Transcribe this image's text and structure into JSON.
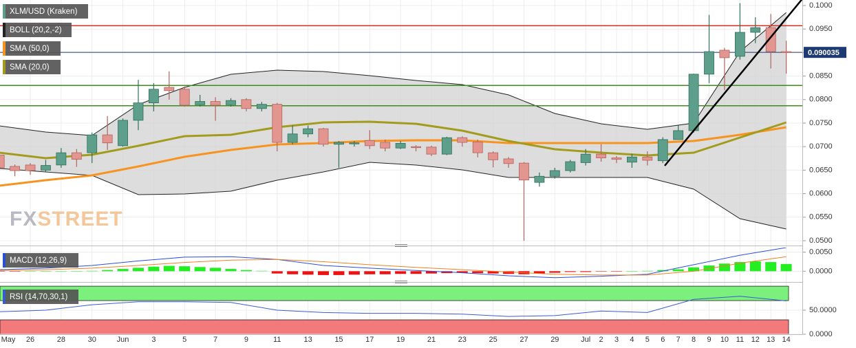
{
  "chart_data": [
    {
      "type": "candlestick",
      "title": "XLM/USD (Kraken)",
      "categories": [
        "May",
        null,
        "26",
        null,
        "28",
        null,
        "30",
        null,
        "Jun",
        null,
        "3",
        null,
        "5",
        null,
        "7",
        null,
        "9",
        null,
        "11",
        null,
        "13",
        null,
        "15",
        null,
        "17",
        null,
        "19",
        null,
        "21",
        null,
        "23",
        null,
        "25",
        null,
        "27",
        null,
        "29",
        null,
        "Jul",
        "2",
        "3",
        "4",
        "5",
        "6",
        "7",
        "8",
        "9",
        "10",
        "11",
        "12",
        "13",
        "14"
      ],
      "open": [
        0.0682,
        0.0658,
        0.0661,
        0.065,
        0.0661,
        0.0687,
        0.0687,
        0.0725,
        0.0702,
        0.0756,
        0.0793,
        0.0826,
        0.0822,
        0.0789,
        0.0796,
        0.0789,
        0.08,
        0.0781,
        0.079,
        0.0709,
        0.0727,
        0.0738,
        0.0705,
        0.0706,
        0.0713,
        0.0709,
        0.0697,
        0.07,
        0.0699,
        0.0684,
        0.0719,
        0.071,
        0.0687,
        0.0674,
        0.0665,
        0.0624,
        0.0637,
        0.0649,
        0.0666,
        0.0684,
        0.0676,
        0.0667,
        0.0678,
        0.067,
        0.0715,
        0.0734,
        0.0854,
        0.0905,
        0.0892,
        0.0943,
        0.0953,
        0.0902
      ],
      "high": [
        0.069,
        0.0662,
        0.0665,
        0.0672,
        0.0697,
        0.0695,
        0.073,
        0.0765,
        0.076,
        0.0842,
        0.0835,
        0.086,
        0.0828,
        0.081,
        0.0805,
        0.0803,
        0.0803,
        0.0795,
        0.0793,
        0.0745,
        0.0745,
        0.074,
        0.0712,
        0.0712,
        0.0735,
        0.0715,
        0.0712,
        0.0703,
        0.0702,
        0.0721,
        0.0722,
        0.0715,
        0.069,
        0.0678,
        0.0667,
        0.0645,
        0.0655,
        0.0672,
        0.0695,
        0.0705,
        0.068,
        0.0685,
        0.069,
        0.072,
        0.0745,
        0.0855,
        0.098,
        0.091,
        0.1005,
        0.0975,
        0.0982,
        0.0925
      ],
      "low": [
        0.065,
        0.0637,
        0.064,
        0.0645,
        0.0655,
        0.0657,
        0.0665,
        0.0693,
        0.07,
        0.0735,
        0.0775,
        0.08,
        0.0785,
        0.0785,
        0.0755,
        0.0785,
        0.0775,
        0.0775,
        0.069,
        0.0705,
        0.072,
        0.07,
        0.0655,
        0.07,
        0.0695,
        0.069,
        0.0695,
        0.069,
        0.068,
        0.0682,
        0.07,
        0.0677,
        0.0656,
        0.0655,
        0.05,
        0.0615,
        0.0632,
        0.0645,
        0.066,
        0.0668,
        0.0665,
        0.0655,
        0.066,
        0.0665,
        0.0715,
        0.073,
        0.0835,
        0.082,
        0.0885,
        0.092,
        0.0866,
        0.0855
      ],
      "close": [
        0.0655,
        0.0649,
        0.0649,
        0.066,
        0.0687,
        0.0673,
        0.0725,
        0.0708,
        0.0756,
        0.0793,
        0.0822,
        0.0819,
        0.0788,
        0.0796,
        0.0788,
        0.0798,
        0.0781,
        0.079,
        0.0709,
        0.0727,
        0.0738,
        0.0705,
        0.0709,
        0.0708,
        0.0702,
        0.0697,
        0.0707,
        0.0698,
        0.0684,
        0.0719,
        0.0709,
        0.0687,
        0.0672,
        0.0664,
        0.0629,
        0.0637,
        0.0649,
        0.0668,
        0.0684,
        0.0676,
        0.0673,
        0.0678,
        0.0671,
        0.0715,
        0.0734,
        0.0854,
        0.0902,
        0.0889,
        0.0943,
        0.0953,
        0.0902,
        0.09
      ],
      "color_up": "#5e9f8b",
      "color_down": "#e3958f",
      "ylim": [
        0.04927,
        0.10117
      ],
      "yticks": [
        {
          "value": 0.1,
          "label": "0.1000"
        },
        {
          "value": 0.095,
          "label": "0.0950"
        },
        {
          "value": 0.09,
          "label": "0.0900"
        },
        {
          "value": 0.085,
          "label": "0.0850"
        },
        {
          "value": 0.08,
          "label": "0.0800"
        },
        {
          "value": 0.075,
          "label": "0.0750"
        },
        {
          "value": 0.07,
          "label": "0.0700"
        },
        {
          "value": 0.065,
          "label": "0.0650"
        },
        {
          "value": 0.06,
          "label": "0.0600"
        },
        {
          "value": 0.055,
          "label": "0.0550"
        },
        {
          "value": 0.05,
          "label": "0.0500"
        }
      ],
      "grid": true,
      "last_price": 0.090035,
      "levels": [
        {
          "value": 0.0957,
          "color": "#d42a20"
        },
        {
          "value": 0.083,
          "color": "#3f8a1c"
        },
        {
          "value": 0.0787,
          "color": "#3f8a1c"
        }
      ],
      "indicators": [
        {
          "name": "BOLL (20,2,-2)",
          "color": "#222222",
          "x": [
            0,
            3,
            6,
            9,
            12,
            15,
            18,
            21,
            24,
            27,
            30,
            33,
            36,
            39,
            42,
            45,
            48,
            51
          ],
          "upper": [
            0.07442,
            0.0731,
            0.07237,
            0.07895,
            0.0826,
            0.08538,
            0.08626,
            0.08596,
            0.08509,
            0.08406,
            0.08319,
            0.08099,
            0.07705,
            0.07485,
            0.07368,
            0.075,
            0.0902,
            0.0985
          ],
          "lower": [
            0.06535,
            0.06462,
            0.06389,
            0.0598,
            0.05994,
            0.06053,
            0.06287,
            0.06462,
            0.06667,
            0.06608,
            0.06506,
            0.06345,
            0.06345,
            0.06345,
            0.06345,
            0.06096,
            0.05468,
            0.05249
          ]
        },
        {
          "name": "SMA (50,0)",
          "color": "#f7931e",
          "x": [
            0,
            3,
            6,
            9,
            12,
            15,
            18,
            21,
            24,
            27,
            30,
            33,
            36,
            39,
            42,
            45,
            48,
            51
          ],
          "values": [
            0.0617,
            0.06287,
            0.06389,
            0.06579,
            0.06784,
            0.0693,
            0.07047,
            0.07076,
            0.0712,
            0.07135,
            0.07135,
            0.07076,
            0.07076,
            0.07076,
            0.07076,
            0.0712,
            0.07251,
            0.07412
          ]
        },
        {
          "name": "SMA (20,0)",
          "color": "#a39b1c",
          "x": [
            0,
            3,
            6,
            9,
            12,
            15,
            18,
            21,
            24,
            27,
            30,
            33,
            36,
            39,
            42,
            45,
            48,
            51
          ],
          "values": [
            0.06871,
            0.06754,
            0.06827,
            0.07018,
            0.07222,
            0.07251,
            0.07412,
            0.07515,
            0.07529,
            0.07485,
            0.07339,
            0.0712,
            0.06944,
            0.06871,
            0.06813,
            0.06871,
            0.07193,
            0.07515
          ]
        }
      ],
      "watermark": {
        "prefix": "FX",
        "suffix": "STREET"
      }
    },
    {
      "type": "macd",
      "title": "MACD (12,26,9)",
      "histogram": [
        -0.0001,
        -0.0001,
        0,
        0,
        0,
        0,
        0.0001,
        0.0003,
        0.0006,
        0.0009,
        0.0012,
        0.0014,
        0.0013,
        0.0011,
        0.0009,
        0.0006,
        0.0003,
        0.0001,
        -0.0006,
        -0.0008,
        -0.0009,
        -0.001,
        -0.001,
        -0.0009,
        -0.0008,
        -0.0008,
        -0.0007,
        -0.0007,
        -0.0006,
        -0.0005,
        -0.0004,
        -0.0005,
        -0.0006,
        -0.0007,
        -0.0008,
        -0.0006,
        -0.0004,
        -0.0002,
        -0.0002,
        -0.0001,
        -0.0001,
        0,
        0.0001,
        0.0003,
        0.0005,
        0.001,
        0.0015,
        0.002,
        0.0024,
        0.0026,
        0.0024,
        0.0019
      ],
      "color_up": "#22ee22",
      "color_down": "#ee1111",
      "lines": [
        {
          "color": "#2a4ed8",
          "x": [
            0,
            3,
            6,
            9,
            12,
            15,
            18,
            21,
            24,
            27,
            30,
            33,
            36,
            39,
            42,
            45,
            48,
            51
          ],
          "values": [
            0.0004,
            0.0008,
            0.0015,
            0.0027,
            0.0037,
            0.0038,
            0.0031,
            0.0015,
            0.0008,
            0.0002,
            -0.0004,
            -0.0012,
            -0.0017,
            -0.0013,
            -0.0008,
            0.0017,
            0.0042,
            0.0062
          ]
        },
        {
          "color": "#f08020",
          "x": [
            0,
            3,
            6,
            9,
            12,
            15,
            18,
            21,
            24,
            27,
            30,
            33,
            36,
            39,
            42,
            45,
            48,
            51
          ],
          "values": [
            0.0002,
            0.0004,
            0.0008,
            0.0015,
            0.0023,
            0.0029,
            0.0031,
            0.0025,
            0.0017,
            0.001,
            0.0004,
            -0.0002,
            -0.0008,
            -0.001,
            -0.001,
            0.0,
            0.0021,
            0.0038
          ]
        }
      ],
      "ylim": [
        -0.0021,
        0.0062
      ],
      "yticks": [
        {
          "value": 0.005,
          "label": "0.0050"
        },
        {
          "value": 0,
          "label": "0.0000"
        }
      ]
    },
    {
      "type": "line",
      "title": "RSI (14,70,30,1)",
      "color": "#3a5bd0",
      "x": [
        0,
        3,
        6,
        9,
        12,
        15,
        18,
        21,
        24,
        27,
        30,
        33,
        36,
        39,
        42,
        45,
        48,
        51
      ],
      "values": [
        46.8,
        50.0,
        61.3,
        67.7,
        67.7,
        66.1,
        50.0,
        45.2,
        43.5,
        43.5,
        41.9,
        37.1,
        38.7,
        48.4,
        45.2,
        72.6,
        79.0,
        69.4
      ],
      "ylim": [
        0,
        103
      ],
      "yticks": [
        {
          "value": 50,
          "label": "50.0000"
        },
        {
          "value": 0,
          "label": "0.0000"
        }
      ],
      "bands": [
        {
          "range": [
            70,
            100
          ],
          "color": "#7cf07c"
        },
        {
          "range": [
            0,
            30
          ],
          "color": "#f27a7a"
        }
      ]
    }
  ]
}
